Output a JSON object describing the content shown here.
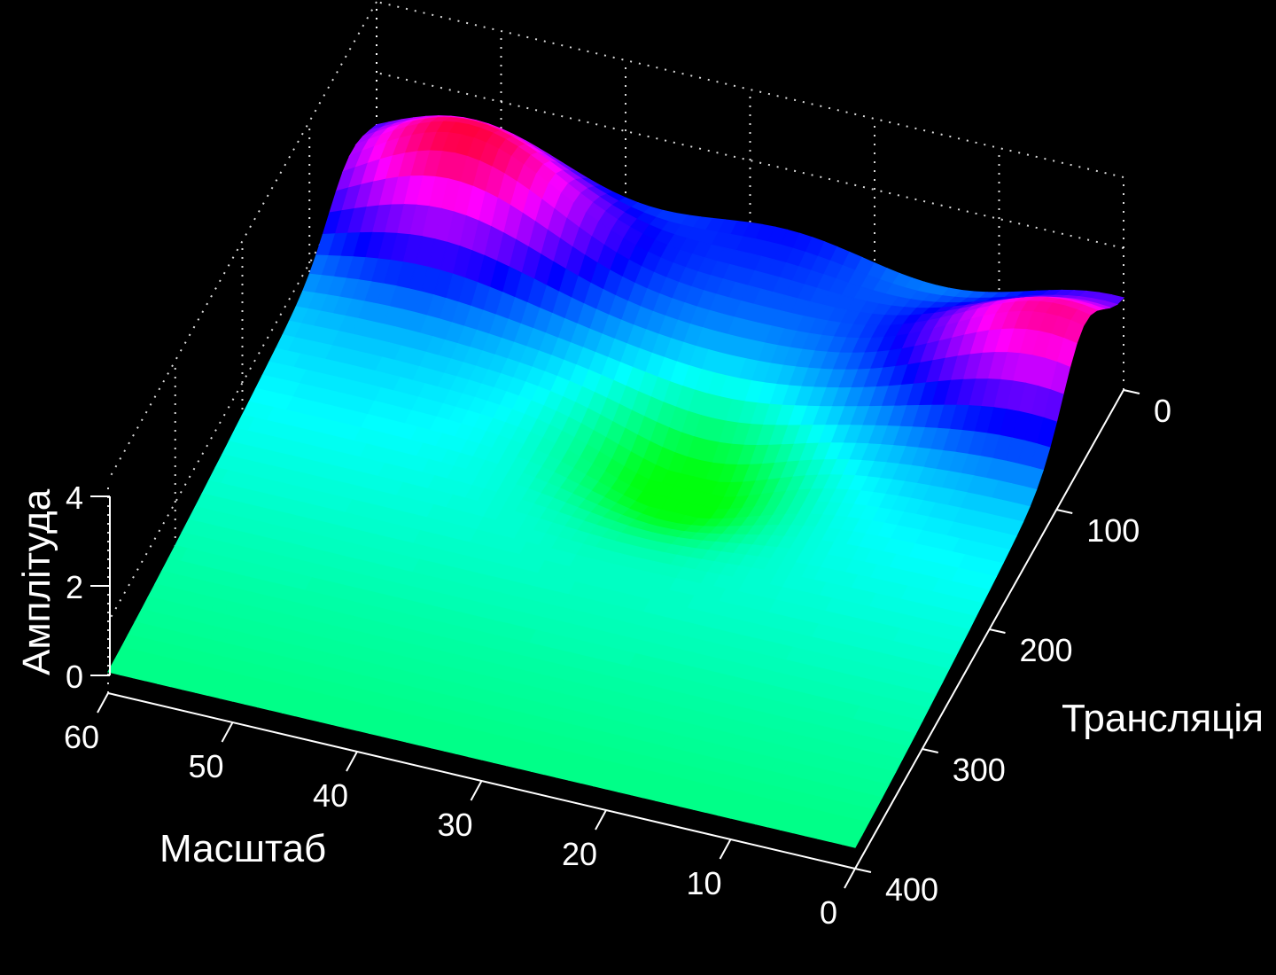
{
  "chart_data": {
    "type": "surface3d",
    "title": "",
    "xlabel": "Масштаб",
    "ylabel": "Трансляція",
    "zlabel": "Амплітуда",
    "x_ticks": [
      "0",
      "10",
      "20",
      "30",
      "40",
      "50",
      "60"
    ],
    "y_ticks": [
      "0",
      "100",
      "200",
      "300",
      "400"
    ],
    "z_ticks": [
      "0",
      "2",
      "4"
    ],
    "xlim": [
      0,
      60
    ],
    "ylim": [
      0,
      400
    ],
    "zlim": [
      0,
      4
    ],
    "grid": true,
    "colormap": "hsv",
    "background": "#000000",
    "features": [
      {
        "kind": "peak",
        "scale": 50,
        "translation": 40,
        "amplitude": 4.3
      },
      {
        "kind": "peak",
        "scale": 3,
        "translation": 60,
        "amplitude": 4.0
      },
      {
        "kind": "pit",
        "scale": 27,
        "translation": 150,
        "amplitude": 0.3
      }
    ]
  }
}
